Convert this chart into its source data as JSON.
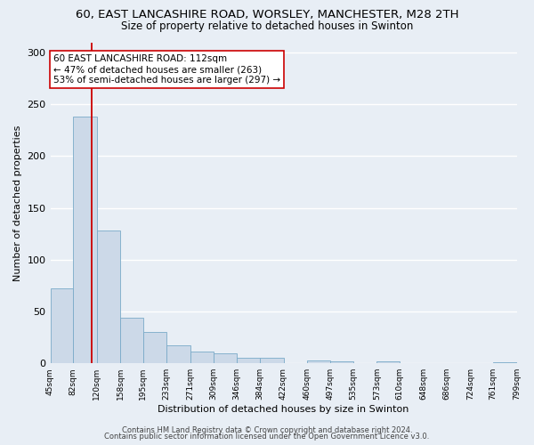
{
  "title": "60, EAST LANCASHIRE ROAD, WORSLEY, MANCHESTER, M28 2TH",
  "subtitle": "Size of property relative to detached houses in Swinton",
  "xlabel": "Distribution of detached houses by size in Swinton",
  "ylabel": "Number of detached properties",
  "bin_edges": [
    45,
    82,
    120,
    158,
    195,
    233,
    271,
    309,
    346,
    384,
    422,
    460,
    497,
    535,
    573,
    610,
    648,
    686,
    724,
    761,
    799
  ],
  "bar_heights": [
    72,
    238,
    128,
    44,
    30,
    17,
    11,
    10,
    5,
    5,
    0,
    3,
    2,
    0,
    2,
    0,
    0,
    0,
    0,
    1
  ],
  "bar_color": "#ccd9e8",
  "bar_edge_color": "#7aaac8",
  "vline_x": 112,
  "vline_color": "#cc0000",
  "annotation_text": "60 EAST LANCASHIRE ROAD: 112sqm\n← 47% of detached houses are smaller (263)\n53% of semi-detached houses are larger (297) →",
  "annotation_box_color": "#ffffff",
  "annotation_box_edge": "#cc0000",
  "ylim": [
    0,
    310
  ],
  "yticks": [
    0,
    50,
    100,
    150,
    200,
    250,
    300
  ],
  "tick_labels": [
    "45sqm",
    "82sqm",
    "120sqm",
    "158sqm",
    "195sqm",
    "233sqm",
    "271sqm",
    "309sqm",
    "346sqm",
    "384sqm",
    "422sqm",
    "460sqm",
    "497sqm",
    "535sqm",
    "573sqm",
    "610sqm",
    "648sqm",
    "686sqm",
    "724sqm",
    "761sqm",
    "799sqm"
  ],
  "footer1": "Contains HM Land Registry data © Crown copyright and database right 2024.",
  "footer2": "Contains public sector information licensed under the Open Government Licence v3.0.",
  "bg_color": "#e8eef5",
  "grid_color": "#ffffff",
  "title_fontsize": 9.5,
  "subtitle_fontsize": 8.5,
  "axis_label_fontsize": 8,
  "tick_fontsize": 6.5,
  "footer_fontsize": 6,
  "annotation_fontsize": 7.5
}
